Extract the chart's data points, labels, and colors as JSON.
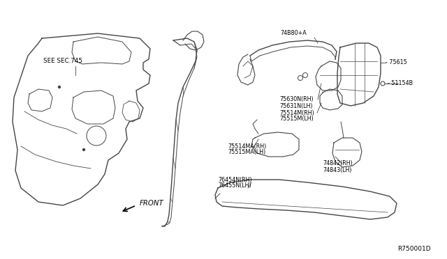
{
  "background_color": "#ffffff",
  "line_color": "#444444",
  "text_color": "#000000",
  "fig_width": 6.4,
  "fig_height": 3.72,
  "dpi": 100,
  "labels": {
    "see_sec": "SEE SEC.745",
    "front": "FRONT",
    "part_74B80A": "74B80+A",
    "part_75615": "- 75615",
    "part_51154B": "- 51154B",
    "part_75630N": "75630N(RH)",
    "part_75631N": "75631N(LH)",
    "part_75514M": "75514M(RH)",
    "part_75515M": "75515M(LH)",
    "part_75514MA": "75514MA(RH)",
    "part_75515MA": "75515MA(LH)",
    "part_74842": "74842(RH)",
    "part_74843": "74843(LH)",
    "part_76454N": "76454N(RH)",
    "part_76455N": "76455N(LH)",
    "ref_num": "R750001D"
  },
  "font_size_label": 5.8,
  "font_size_ref": 6.5
}
